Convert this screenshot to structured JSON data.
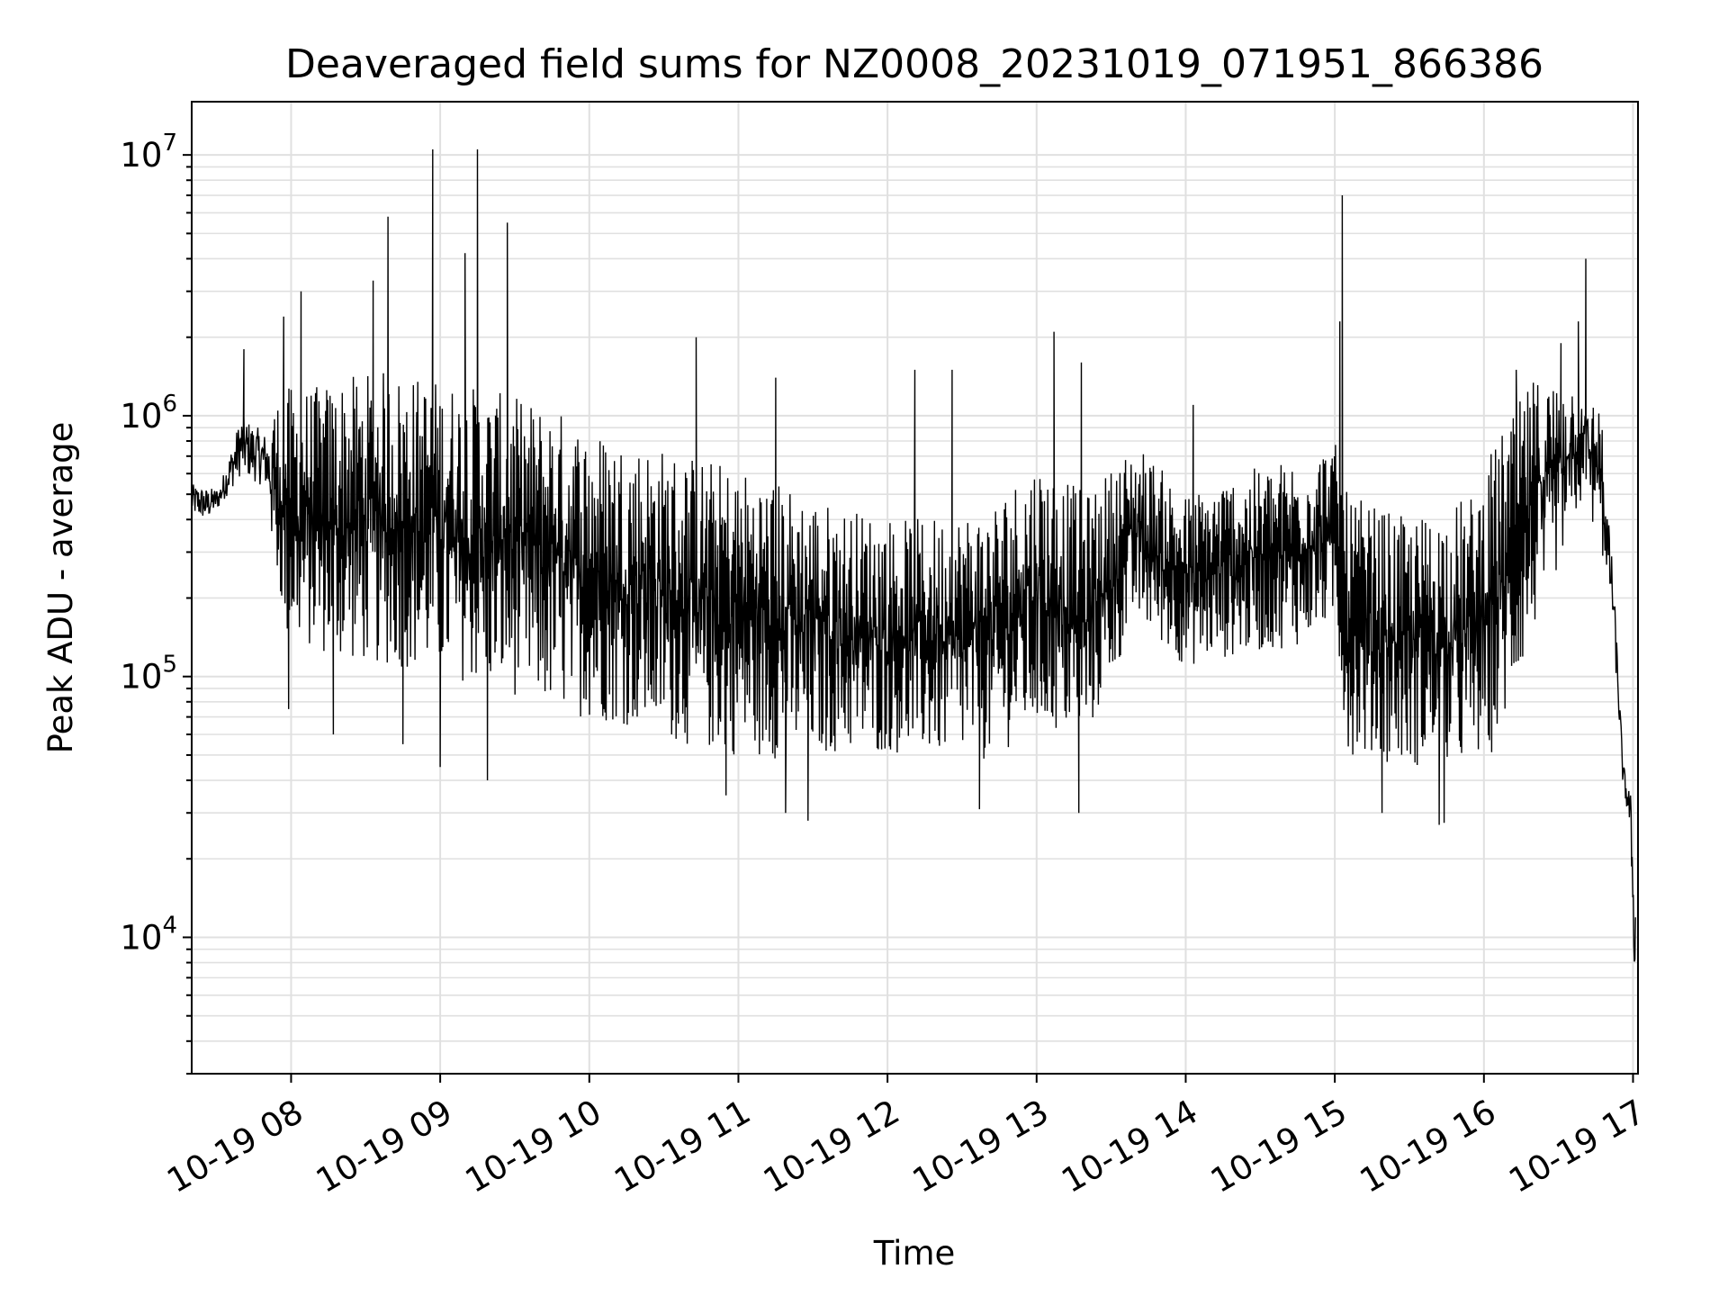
{
  "chart_data": {
    "type": "line",
    "title": "Deaveraged field sums for NZ0008_20231019_071951_866386",
    "xlabel": "Time",
    "ylabel": "Peak ADU - average",
    "yscale": "log",
    "ylim": [
      3000,
      16000000
    ],
    "xlim": [
      "2023-10-19 07:20",
      "2023-10-19 17:02"
    ],
    "grid": true,
    "grid_minor": true,
    "line_color": "#000000",
    "grid_color": "#e0e0e0",
    "x_ticks": [
      "10-19 08",
      "10-19 09",
      "10-19 10",
      "10-19 11",
      "10-19 12",
      "10-19 13",
      "10-19 14",
      "10-19 15",
      "10-19 16",
      "10-19 17"
    ],
    "y_ticks": [
      {
        "value": 10000,
        "base": "10",
        "exp": "4"
      },
      {
        "value": 100000,
        "base": "10",
        "exp": "5"
      },
      {
        "value": 1000000,
        "base": "10",
        "exp": "6"
      },
      {
        "value": 10000000,
        "base": "10",
        "exp": "7"
      }
    ],
    "series": [
      {
        "x": [
          "2023-10-19 07:20",
          "2023-10-19 07:26",
          "2023-10-19 07:31",
          "2023-10-19 07:40",
          "2023-10-19 07:50",
          "2023-10-19 07:58",
          "2023-10-19 08:10",
          "2023-10-19 08:20",
          "2023-10-19 08:38",
          "2023-10-19 08:57",
          "2023-10-19 09:15",
          "2023-10-19 09:27",
          "2023-10-19 09:45",
          "2023-10-19 10:00",
          "2023-10-19 10:20",
          "2023-10-19 10:45",
          "2023-10-19 11:10",
          "2023-10-19 11:40",
          "2023-10-19 12:10",
          "2023-10-19 12:40",
          "2023-10-19 13:00",
          "2023-10-19 13:20",
          "2023-10-19 13:40",
          "2023-10-19 14:00",
          "2023-10-19 14:20",
          "2023-10-19 14:45",
          "2023-10-19 15:00",
          "2023-10-19 15:05",
          "2023-10-19 15:30",
          "2023-10-19 15:55",
          "2023-10-19 16:05",
          "2023-10-19 16:20",
          "2023-10-19 16:40",
          "2023-10-19 16:47",
          "2023-10-19 16:52",
          "2023-10-19 16:56",
          "2023-10-19 16:59",
          "2023-10-19 17:01"
        ],
        "low": [
          380000,
          360000,
          420000,
          500000,
          450000,
          120000,
          110000,
          100000,
          95000,
          90000,
          80000,
          75000,
          65000,
          60000,
          55000,
          45000,
          42000,
          45000,
          45000,
          42000,
          55000,
          50000,
          150000,
          100000,
          110000,
          120000,
          150000,
          45000,
          40000,
          40000,
          45000,
          130000,
          450000,
          300000,
          130000,
          35000,
          22000,
          4000
        ],
        "high": [
          600000,
          580000,
          560000,
          1200000,
          1000000,
          1300000,
          1300000,
          1400000,
          1500000,
          1400000,
          1300000,
          1200000,
          1100000,
          900000,
          800000,
          700000,
          600000,
          450000,
          400000,
          450000,
          700000,
          500000,
          800000,
          500000,
          600000,
          700000,
          800000,
          500000,
          400000,
          500000,
          800000,
          1400000,
          1400000,
          1100000,
          300000,
          50000,
          40000,
          15000
        ],
        "spikes": [
          {
            "x": "2023-10-19 07:41",
            "y": 1800000
          },
          {
            "x": "2023-10-19 07:57",
            "y": 2400000
          },
          {
            "x": "2023-10-19 08:04",
            "y": 3000000
          },
          {
            "x": "2023-10-19 08:33",
            "y": 3300000
          },
          {
            "x": "2023-10-19 08:39",
            "y": 5800000
          },
          {
            "x": "2023-10-19 08:57",
            "y": 10500000
          },
          {
            "x": "2023-10-19 09:10",
            "y": 4200000
          },
          {
            "x": "2023-10-19 09:15",
            "y": 10500000
          },
          {
            "x": "2023-10-19 09:27",
            "y": 5500000
          },
          {
            "x": "2023-10-19 10:43",
            "y": 2000000
          },
          {
            "x": "2023-10-19 11:15",
            "y": 1400000
          },
          {
            "x": "2023-10-19 12:11",
            "y": 1500000
          },
          {
            "x": "2023-10-19 12:26",
            "y": 1500000
          },
          {
            "x": "2023-10-19 13:07",
            "y": 2100000
          },
          {
            "x": "2023-10-19 13:18",
            "y": 1600000
          },
          {
            "x": "2023-10-19 14:03",
            "y": 1100000
          },
          {
            "x": "2023-10-19 15:03",
            "y": 7000000
          },
          {
            "x": "2023-10-19 15:02",
            "y": 2300000
          },
          {
            "x": "2023-10-19 16:13",
            "y": 1500000
          },
          {
            "x": "2023-10-19 16:31",
            "y": 1900000
          },
          {
            "x": "2023-10-19 16:38",
            "y": 2300000
          },
          {
            "x": "2023-10-19 16:41",
            "y": 4000000
          }
        ],
        "dips": [
          {
            "x": "2023-10-19 07:59",
            "y": 75000
          },
          {
            "x": "2023-10-19 08:17",
            "y": 60000
          },
          {
            "x": "2023-10-19 08:45",
            "y": 55000
          },
          {
            "x": "2023-10-19 09:00",
            "y": 45000
          },
          {
            "x": "2023-10-19 09:19",
            "y": 40000
          },
          {
            "x": "2023-10-19 10:55",
            "y": 35000
          },
          {
            "x": "2023-10-19 11:19",
            "y": 30000
          },
          {
            "x": "2023-10-19 11:28",
            "y": 28000
          },
          {
            "x": "2023-10-19 12:37",
            "y": 31000
          },
          {
            "x": "2023-10-19 13:17",
            "y": 30000
          },
          {
            "x": "2023-10-19 15:19",
            "y": 30000
          },
          {
            "x": "2023-10-19 15:42",
            "y": 27000
          },
          {
            "x": "2023-10-19 15:44",
            "y": 27500
          }
        ]
      }
    ]
  }
}
